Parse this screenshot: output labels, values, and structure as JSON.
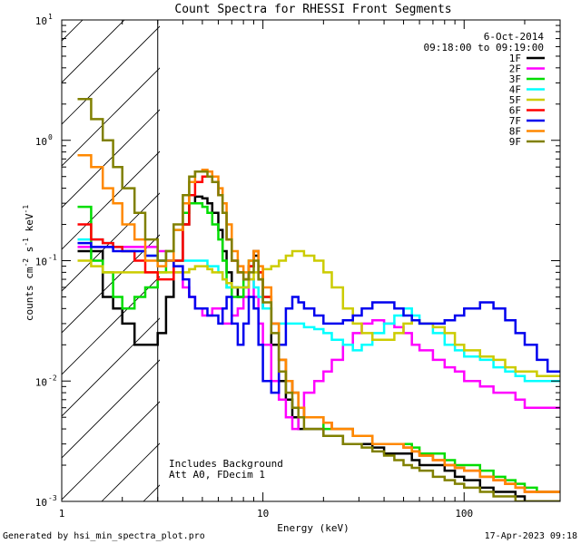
{
  "chart_data": {
    "type": "line",
    "title": "Count Spectra for RHESSI Front Segments",
    "xlabel": "Energy (keV)",
    "ylabel_main": "counts cm",
    "ylabel_sup1": "-2",
    "ylabel_mid": " s",
    "ylabel_sup2": "-1",
    "ylabel_end": " keV",
    "ylabel_sup3": "-1",
    "xscale": "log",
    "yscale": "log",
    "xlim": [
      1,
      300
    ],
    "ylim": [
      0.001,
      10
    ],
    "x_ticks": [
      {
        "value": 1,
        "label": "1"
      },
      {
        "value": 10,
        "label": "10"
      },
      {
        "value": 100,
        "label": "100"
      }
    ],
    "y_ticks": [
      {
        "value": 0.001,
        "base": "10",
        "exp": "-3"
      },
      {
        "value": 0.01,
        "base": "10",
        "exp": "-2"
      },
      {
        "value": 0.1,
        "base": "10",
        "exp": "-1"
      },
      {
        "value": 1,
        "base": "10",
        "exp": "0"
      },
      {
        "value": 10,
        "base": "10",
        "exp": "1"
      }
    ],
    "date": "6-Oct-2014",
    "time_range": "09:18:00 to 09:19:00",
    "hatched_below_keV": 3,
    "annotation_line1": "Includes Background",
    "annotation_line2": "Att A0, FDecim 1",
    "footer_left": "Generated by hsi_min_spectra_plot.pro",
    "footer_right": "17-Apr-2023 09:18",
    "energy_bins": [
      1.2,
      1.4,
      1.6,
      1.8,
      2.0,
      2.3,
      2.6,
      3.0,
      3.3,
      3.6,
      4.0,
      4.3,
      4.6,
      5.0,
      5.3,
      5.6,
      6.0,
      6.3,
      6.6,
      7.0,
      7.5,
      8.0,
      8.5,
      9.0,
      9.5,
      10,
      11,
      12,
      13,
      14,
      15,
      16,
      18,
      20,
      22,
      25,
      28,
      31,
      35,
      40,
      45,
      50,
      55,
      60,
      70,
      80,
      90,
      100,
      120,
      140,
      160,
      180,
      200,
      230,
      260,
      290
    ],
    "series": [
      {
        "name": "1F",
        "color": "#000000",
        "values": [
          0.12,
          0.12,
          0.05,
          0.04,
          0.03,
          0.02,
          0.02,
          0.025,
          0.05,
          0.1,
          0.2,
          0.3,
          0.34,
          0.33,
          0.3,
          0.25,
          0.18,
          0.12,
          0.08,
          0.06,
          0.05,
          0.06,
          0.09,
          0.11,
          0.07,
          0.04,
          0.02,
          0.01,
          0.007,
          0.005,
          0.004,
          0.004,
          0.004,
          0.0035,
          0.0035,
          0.003,
          0.003,
          0.003,
          0.0028,
          0.0025,
          0.0025,
          0.0025,
          0.0022,
          0.002,
          0.002,
          0.0018,
          0.0016,
          0.0015,
          0.0013,
          0.0012,
          0.0012,
          0.0011,
          0.001,
          0.001,
          0.001,
          0.001
        ]
      },
      {
        "name": "2F",
        "color": "#ff00ff",
        "values": [
          0.13,
          0.13,
          0.13,
          0.13,
          0.13,
          0.13,
          0.13,
          0.12,
          0.1,
          0.08,
          0.06,
          0.05,
          0.04,
          0.035,
          0.035,
          0.04,
          0.04,
          0.03,
          0.03,
          0.035,
          0.04,
          0.05,
          0.07,
          0.05,
          0.03,
          0.02,
          0.01,
          0.007,
          0.005,
          0.004,
          0.005,
          0.008,
          0.01,
          0.012,
          0.015,
          0.02,
          0.025,
          0.03,
          0.032,
          0.03,
          0.028,
          0.025,
          0.02,
          0.018,
          0.015,
          0.013,
          0.012,
          0.01,
          0.009,
          0.008,
          0.008,
          0.007,
          0.006,
          0.006,
          0.006,
          0.006
        ]
      },
      {
        "name": "3F",
        "color": "#00dd00",
        "values": [
          0.28,
          0.1,
          0.08,
          0.05,
          0.04,
          0.05,
          0.06,
          0.08,
          0.12,
          0.18,
          0.25,
          0.3,
          0.3,
          0.28,
          0.25,
          0.2,
          0.15,
          0.1,
          0.06,
          0.05,
          0.05,
          0.07,
          0.1,
          0.12,
          0.08,
          0.05,
          0.03,
          0.015,
          0.01,
          0.008,
          0.006,
          0.005,
          0.005,
          0.004,
          0.004,
          0.004,
          0.0035,
          0.0035,
          0.003,
          0.003,
          0.003,
          0.003,
          0.0028,
          0.0025,
          0.0025,
          0.0022,
          0.002,
          0.002,
          0.0018,
          0.0016,
          0.0015,
          0.0014,
          0.0013,
          0.0012,
          0.0012,
          0.0012
        ]
      },
      {
        "name": "4F",
        "color": "#00ffff",
        "values": [
          0.15,
          0.15,
          0.14,
          0.13,
          0.12,
          0.12,
          0.11,
          0.1,
          0.1,
          0.1,
          0.1,
          0.1,
          0.1,
          0.1,
          0.09,
          0.09,
          0.08,
          0.07,
          0.06,
          0.06,
          0.06,
          0.06,
          0.07,
          0.06,
          0.05,
          0.04,
          0.03,
          0.03,
          0.03,
          0.03,
          0.03,
          0.028,
          0.027,
          0.025,
          0.022,
          0.02,
          0.018,
          0.02,
          0.025,
          0.03,
          0.035,
          0.04,
          0.035,
          0.03,
          0.025,
          0.02,
          0.018,
          0.016,
          0.015,
          0.013,
          0.012,
          0.011,
          0.01,
          0.01,
          0.01,
          0.01
        ]
      },
      {
        "name": "5F",
        "color": "#cccc00",
        "values": [
          0.1,
          0.09,
          0.08,
          0.08,
          0.08,
          0.08,
          0.08,
          0.08,
          0.08,
          0.08,
          0.08,
          0.085,
          0.09,
          0.09,
          0.085,
          0.08,
          0.08,
          0.07,
          0.065,
          0.06,
          0.06,
          0.06,
          0.07,
          0.08,
          0.08,
          0.085,
          0.09,
          0.1,
          0.11,
          0.12,
          0.12,
          0.11,
          0.1,
          0.08,
          0.06,
          0.04,
          0.03,
          0.025,
          0.022,
          0.022,
          0.025,
          0.03,
          0.032,
          0.03,
          0.028,
          0.025,
          0.02,
          0.018,
          0.016,
          0.015,
          0.013,
          0.012,
          0.012,
          0.011,
          0.011,
          0.011
        ]
      },
      {
        "name": "6F",
        "color": "#ff0000",
        "values": [
          0.2,
          0.15,
          0.14,
          0.13,
          0.12,
          0.1,
          0.08,
          0.07,
          0.07,
          0.1,
          0.2,
          0.35,
          0.45,
          0.5,
          0.5,
          0.45,
          0.35,
          0.25,
          0.15,
          0.1,
          0.08,
          0.07,
          0.09,
          0.12,
          0.08,
          0.05,
          0.03,
          0.015,
          0.01,
          0.008,
          0.006,
          0.005,
          0.005,
          0.0045,
          0.004,
          0.004,
          0.0035,
          0.0035,
          0.003,
          0.003,
          0.003,
          0.0028,
          0.0026,
          0.0024,
          0.0022,
          0.002,
          0.0019,
          0.0018,
          0.0016,
          0.0015,
          0.0014,
          0.0013,
          0.0012,
          0.0012,
          0.0012,
          0.0012
        ]
      },
      {
        "name": "7F",
        "color": "#0000ee",
        "values": [
          0.14,
          0.13,
          0.13,
          0.12,
          0.12,
          0.12,
          0.11,
          0.1,
          0.1,
          0.09,
          0.07,
          0.05,
          0.04,
          0.04,
          0.035,
          0.035,
          0.03,
          0.04,
          0.05,
          0.03,
          0.02,
          0.03,
          0.05,
          0.04,
          0.02,
          0.01,
          0.008,
          0.02,
          0.04,
          0.05,
          0.045,
          0.04,
          0.035,
          0.03,
          0.03,
          0.032,
          0.035,
          0.04,
          0.045,
          0.045,
          0.04,
          0.035,
          0.032,
          0.03,
          0.03,
          0.032,
          0.035,
          0.04,
          0.045,
          0.04,
          0.032,
          0.025,
          0.02,
          0.015,
          0.012,
          0.012
        ]
      },
      {
        "name": "8F",
        "color": "#ff8800",
        "values": [
          0.75,
          0.6,
          0.4,
          0.3,
          0.2,
          0.15,
          0.1,
          0.09,
          0.1,
          0.18,
          0.3,
          0.45,
          0.55,
          0.57,
          0.55,
          0.5,
          0.4,
          0.3,
          0.2,
          0.12,
          0.09,
          0.08,
          0.1,
          0.12,
          0.09,
          0.06,
          0.03,
          0.015,
          0.01,
          0.008,
          0.006,
          0.005,
          0.005,
          0.0045,
          0.004,
          0.004,
          0.0035,
          0.0035,
          0.003,
          0.003,
          0.003,
          0.0028,
          0.0026,
          0.0024,
          0.0022,
          0.002,
          0.0019,
          0.0018,
          0.0016,
          0.0015,
          0.0014,
          0.0013,
          0.0012,
          0.0012,
          0.0012,
          0.0012
        ]
      },
      {
        "name": "9F",
        "color": "#808000",
        "values": [
          2.2,
          1.5,
          1.0,
          0.6,
          0.4,
          0.25,
          0.15,
          0.1,
          0.12,
          0.2,
          0.35,
          0.5,
          0.55,
          0.55,
          0.5,
          0.45,
          0.35,
          0.25,
          0.15,
          0.1,
          0.08,
          0.07,
          0.08,
          0.1,
          0.07,
          0.045,
          0.025,
          0.012,
          0.008,
          0.006,
          0.005,
          0.004,
          0.004,
          0.0035,
          0.0035,
          0.003,
          0.003,
          0.0028,
          0.0026,
          0.0024,
          0.0022,
          0.002,
          0.0019,
          0.0018,
          0.0016,
          0.0015,
          0.0014,
          0.0013,
          0.0012,
          0.0011,
          0.0011,
          0.001,
          0.001,
          0.001,
          0.001,
          0.001
        ]
      }
    ]
  }
}
